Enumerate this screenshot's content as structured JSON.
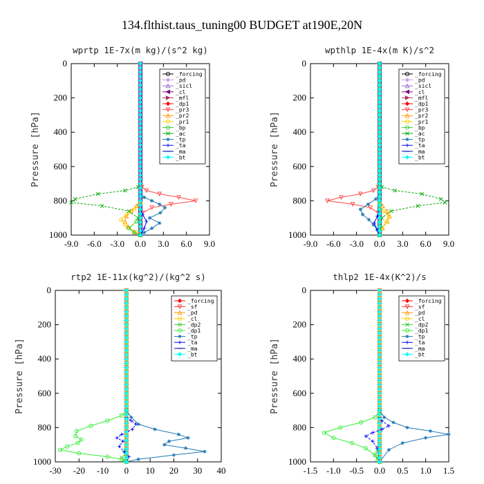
{
  "figure_title": "134.flthist.taus_tuning00  BUDGET at190E,20N",
  "chart_data": [
    {
      "type": "line",
      "title": "wprtp  1E-7x(m kg)/(s^2 kg)",
      "ylabel": "Pressure [hPa]",
      "xlim": [
        -9,
        9
      ],
      "ylim": [
        1000,
        0
      ],
      "xticks": [
        "-9.0",
        "-6.0",
        "-3.0",
        "0.0",
        "3.0",
        "6.0",
        "9.0"
      ],
      "yticks": [
        "0",
        "200",
        "400",
        "600",
        "800",
        "1000"
      ],
      "legend": "top-right",
      "series": [
        {
          "name": "_forcing",
          "color": "#000000",
          "marker": "circle",
          "x": [
            0
          ],
          "y": [
            0
          ]
        },
        {
          "name": "_pd",
          "color": "#c8a2e8",
          "marker": "diamond",
          "x": [
            0
          ],
          "y": [
            0
          ]
        },
        {
          "name": "_sicl",
          "color": "#9966cc",
          "marker": "triangle",
          "x": [
            0
          ],
          "y": [
            0
          ]
        },
        {
          "name": "_cl",
          "color": "#800080",
          "marker": "triangle-left",
          "x": [
            0
          ],
          "y": [
            0
          ]
        },
        {
          "name": "_mfl",
          "color": "#b03060",
          "marker": "triangle-right",
          "x": [
            0
          ],
          "y": [
            0
          ]
        },
        {
          "name": "_dp1",
          "color": "#ff0000",
          "marker": "diamond",
          "x": [
            0
          ],
          "y": [
            0
          ]
        },
        {
          "name": "_pr3",
          "color": "#ff4444",
          "marker": "triangle-down",
          "x": [
            0.0,
            0.2,
            0.8,
            2.5,
            5.0,
            7.2,
            4.0,
            1.5,
            0.3,
            0.0
          ],
          "y": [
            700,
            720,
            740,
            760,
            780,
            800,
            820,
            840,
            870,
            1000
          ]
        },
        {
          "name": "_pr2",
          "color": "#ff9900",
          "marker": "triangle",
          "x": [
            0.0,
            -0.5,
            -1.2,
            -1.8,
            -2.0,
            -1.6,
            -0.8,
            0.0
          ],
          "y": [
            800,
            830,
            860,
            890,
            920,
            950,
            980,
            1000
          ]
        },
        {
          "name": "_pr1",
          "color": "#ffcc00",
          "marker": "circle",
          "x": [
            0.0,
            -0.8,
            -1.8,
            -2.5,
            -2.0,
            -1.5,
            -0.5,
            0.0
          ],
          "y": [
            820,
            850,
            880,
            910,
            940,
            960,
            985,
            1000
          ]
        },
        {
          "name": "_bp",
          "color": "#33cc33",
          "marker": "circle",
          "x": [
            0.0,
            -0.5,
            -1.5,
            -0.8,
            0.0
          ],
          "y": [
            880,
            920,
            960,
            985,
            1000
          ]
        },
        {
          "name": "_ac",
          "color": "#00aa00",
          "marker": "cross",
          "x": [
            0.0,
            -0.3,
            -2.0,
            -5.5,
            -8.5,
            -9.0,
            -5.0,
            -1.5,
            -0.3,
            0.0
          ],
          "y": [
            700,
            720,
            740,
            760,
            790,
            810,
            830,
            860,
            900,
            1000
          ]
        },
        {
          "name": "_tp",
          "color": "#1f77b4",
          "marker": "star",
          "x": [
            0.0,
            0.5,
            1.5,
            2.5,
            3.2,
            2.6,
            1.2,
            2.5,
            1.5,
            0.5,
            0.0
          ],
          "y": [
            760,
            780,
            800,
            820,
            840,
            870,
            900,
            930,
            960,
            985,
            1000
          ]
        },
        {
          "name": "_ta",
          "color": "#0000ff",
          "marker": "plus",
          "x": [
            0.0,
            0.3,
            0.8,
            0.5,
            0.0
          ],
          "y": [
            850,
            880,
            920,
            960,
            1000
          ]
        },
        {
          "name": "_ma",
          "color": "#0000aa",
          "marker": "dash",
          "x": [
            0
          ],
          "y": [
            0
          ]
        },
        {
          "name": "_bt",
          "color": "#00ffff",
          "marker": "diamond",
          "x": [
            0
          ],
          "y": [
            0
          ]
        }
      ]
    },
    {
      "type": "line",
      "title": "wpthlp  1E-4x(m K)/s^2",
      "ylabel": "Pressure [hPa]",
      "xlim": [
        -9,
        9
      ],
      "ylim": [
        1000,
        0
      ],
      "xticks": [
        "-9.0",
        "-6.0",
        "-3.0",
        "0.0",
        "3.0",
        "6.0",
        "9.0"
      ],
      "yticks": [
        "0",
        "200",
        "400",
        "600",
        "800",
        "1000"
      ],
      "legend": "top-right",
      "series": [
        {
          "name": "_forcing",
          "color": "#000000",
          "marker": "circle",
          "x": [
            0
          ],
          "y": [
            0
          ]
        },
        {
          "name": "_pd",
          "color": "#c8a2e8",
          "marker": "diamond",
          "x": [
            0
          ],
          "y": [
            0
          ]
        },
        {
          "name": "_sicl",
          "color": "#9966cc",
          "marker": "triangle",
          "x": [
            0
          ],
          "y": [
            0
          ]
        },
        {
          "name": "_cl",
          "color": "#800080",
          "marker": "triangle-left",
          "x": [
            0
          ],
          "y": [
            0
          ]
        },
        {
          "name": "_mfl",
          "color": "#b03060",
          "marker": "triangle-right",
          "x": [
            0
          ],
          "y": [
            0
          ]
        },
        {
          "name": "_dp1",
          "color": "#ff0000",
          "marker": "diamond",
          "x": [
            0
          ],
          "y": [
            0
          ]
        },
        {
          "name": "_pr3",
          "color": "#ff4444",
          "marker": "triangle-down",
          "x": [
            0.0,
            -0.2,
            -0.8,
            -2.5,
            -5.0,
            -6.8,
            -3.5,
            -1.2,
            -0.2,
            0.0
          ],
          "y": [
            700,
            720,
            740,
            760,
            780,
            800,
            820,
            840,
            870,
            1000
          ]
        },
        {
          "name": "_pr2",
          "color": "#ff9900",
          "marker": "triangle",
          "x": [
            0.0,
            0.4,
            1.0,
            1.3,
            1.0,
            0.4,
            0.0
          ],
          "y": [
            800,
            830,
            860,
            890,
            920,
            960,
            1000
          ]
        },
        {
          "name": "_pr1",
          "color": "#ffcc00",
          "marker": "circle",
          "x": [
            0.0,
            0.5,
            1.2,
            0.9,
            0.3,
            0.0
          ],
          "y": [
            820,
            860,
            890,
            920,
            960,
            1000
          ]
        },
        {
          "name": "_bp",
          "color": "#33cc33",
          "marker": "circle",
          "x": [
            0
          ],
          "y": [
            0
          ]
        },
        {
          "name": "_ac",
          "color": "#00aa00",
          "marker": "cross",
          "x": [
            0.0,
            0.3,
            2.0,
            5.5,
            8.0,
            8.5,
            5.0,
            1.5,
            0.3,
            0.0
          ],
          "y": [
            700,
            720,
            740,
            760,
            790,
            810,
            830,
            860,
            900,
            1000
          ]
        },
        {
          "name": "_tp",
          "color": "#1f77b4",
          "marker": "star",
          "x": [
            0.0,
            -0.5,
            -1.5,
            -2.5,
            -2.2,
            -1.4,
            -0.8,
            -0.3,
            0.0
          ],
          "y": [
            760,
            790,
            820,
            850,
            880,
            910,
            940,
            970,
            1000
          ]
        },
        {
          "name": "_ta",
          "color": "#0000ff",
          "marker": "plus",
          "x": [
            0.0,
            -0.3,
            -0.7,
            -0.3,
            0.0
          ],
          "y": [
            850,
            890,
            930,
            970,
            1000
          ]
        },
        {
          "name": "_ma",
          "color": "#0000aa",
          "marker": "dash",
          "x": [
            0
          ],
          "y": [
            0
          ]
        },
        {
          "name": "_bt",
          "color": "#00ffff",
          "marker": "diamond",
          "x": [
            0
          ],
          "y": [
            0
          ]
        }
      ]
    },
    {
      "type": "line",
      "title": "rtp2  1E-11x(kg^2)/(kg^2 s)",
      "ylabel": "Pressure [hPa]",
      "xlim": [
        -30,
        40
      ],
      "ylim": [
        1000,
        0
      ],
      "xticks": [
        "-30",
        "-20",
        "-10",
        "0",
        "10",
        "20",
        "30",
        "40"
      ],
      "yticks": [
        "0",
        "200",
        "400",
        "600",
        "800",
        "1000"
      ],
      "legend": "top-right",
      "series": [
        {
          "name": "_forcing",
          "color": "#ff0000",
          "marker": "diamond",
          "x": [
            0
          ],
          "y": [
            0
          ]
        },
        {
          "name": "_sf",
          "color": "#ff3333",
          "marker": "triangle-down",
          "x": [
            0
          ],
          "y": [
            0
          ]
        },
        {
          "name": "_pd",
          "color": "#ff9900",
          "marker": "triangle",
          "x": [
            0
          ],
          "y": [
            0
          ]
        },
        {
          "name": "_cl",
          "color": "#ffcc00",
          "marker": "circle",
          "x": [
            0
          ],
          "y": [
            0
          ]
        },
        {
          "name": "_dp2",
          "color": "#33cc33",
          "marker": "cross",
          "x": [
            0.0,
            -0.5,
            -2.0,
            -1.0,
            0.0
          ],
          "y": [
            930,
            955,
            975,
            990,
            1000
          ]
        },
        {
          "name": "_dp1",
          "color": "#33ee33",
          "marker": "circle",
          "x": [
            0.0,
            -2.0,
            -8.0,
            -15.0,
            -21.0,
            -21.5,
            -19.0,
            -20.5,
            -25.0,
            -28.0,
            -20.0,
            -8.0,
            -2.0,
            0.0
          ],
          "y": [
            700,
            730,
            760,
            790,
            820,
            850,
            870,
            890,
            910,
            930,
            950,
            970,
            985,
            1000
          ]
        },
        {
          "name": "_tp",
          "color": "#1f77b4",
          "marker": "star",
          "x": [
            0.0,
            2.0,
            5.0,
            12.0,
            22.0,
            26.0,
            18.0,
            16.0,
            25.0,
            33.0,
            20.0,
            5.0,
            0.0
          ],
          "y": [
            700,
            740,
            780,
            810,
            840,
            860,
            880,
            900,
            920,
            940,
            960,
            985,
            1000
          ]
        },
        {
          "name": "_ta",
          "color": "#0000ff",
          "marker": "plus",
          "x": [
            0.0,
            2.0,
            4.0,
            2.5,
            -2.0,
            -4.0,
            -1.5,
            -3.0,
            -1.0,
            1.0,
            0.0
          ],
          "y": [
            740,
            760,
            780,
            810,
            840,
            860,
            880,
            910,
            940,
            970,
            1000
          ]
        },
        {
          "name": "_ma",
          "color": "#0000aa",
          "marker": "dash",
          "x": [
            0
          ],
          "y": [
            0
          ]
        },
        {
          "name": "_bt",
          "color": "#00ffff",
          "marker": "diamond",
          "x": [
            0
          ],
          "y": [
            0
          ]
        }
      ]
    },
    {
      "type": "line",
      "title": "thlp2  1E-4x(K^2)/s",
      "ylabel": "Pressure [hPa]",
      "xlim": [
        -1.5,
        1.5
      ],
      "ylim": [
        1000,
        0
      ],
      "xticks": [
        "-1.5",
        "-1.0",
        "-0.5",
        "0.0",
        "0.5",
        "1.0",
        "1.5"
      ],
      "yticks": [
        "0",
        "200",
        "400",
        "600",
        "800",
        "1000"
      ],
      "legend": "top-right",
      "series": [
        {
          "name": "_forcing",
          "color": "#ff0000",
          "marker": "diamond",
          "x": [
            0
          ],
          "y": [
            0
          ]
        },
        {
          "name": "_sf",
          "color": "#ff3333",
          "marker": "triangle-down",
          "x": [
            0
          ],
          "y": [
            0
          ]
        },
        {
          "name": "_pd",
          "color": "#ff9900",
          "marker": "triangle",
          "x": [
            0
          ],
          "y": [
            0
          ]
        },
        {
          "name": "_cl",
          "color": "#ffcc00",
          "marker": "circle",
          "x": [
            0
          ],
          "y": [
            0
          ]
        },
        {
          "name": "_dp2",
          "color": "#33cc33",
          "marker": "cross",
          "x": [
            0.0,
            -0.05,
            -0.1,
            -0.05,
            0.0
          ],
          "y": [
            900,
            930,
            960,
            985,
            1000
          ]
        },
        {
          "name": "_dp1",
          "color": "#33ee33",
          "marker": "circle",
          "x": [
            0.0,
            -0.1,
            -0.4,
            -0.85,
            -1.2,
            -1.0,
            -0.6,
            -0.3,
            -0.1,
            0.0
          ],
          "y": [
            700,
            740,
            770,
            800,
            830,
            860,
            890,
            920,
            960,
            1000
          ]
        },
        {
          "name": "_tp",
          "color": "#1f77b4",
          "marker": "star",
          "x": [
            0.0,
            0.1,
            0.3,
            0.6,
            1.1,
            1.5,
            1.0,
            0.5,
            0.2,
            0.0
          ],
          "y": [
            700,
            740,
            770,
            800,
            820,
            840,
            860,
            890,
            930,
            1000
          ]
        },
        {
          "name": "_ta",
          "color": "#0000ff",
          "marker": "plus",
          "x": [
            0.0,
            0.05,
            0.2,
            0.05,
            -0.15,
            -0.3,
            -0.15,
            -0.05,
            0.0
          ],
          "y": [
            740,
            760,
            790,
            810,
            830,
            850,
            880,
            920,
            1000
          ]
        },
        {
          "name": "_ma",
          "color": "#0000aa",
          "marker": "dash",
          "x": [
            0
          ],
          "y": [
            0
          ]
        },
        {
          "name": "_bt",
          "color": "#00ffff",
          "marker": "diamond",
          "x": [
            0
          ],
          "y": [
            0
          ]
        }
      ]
    }
  ]
}
